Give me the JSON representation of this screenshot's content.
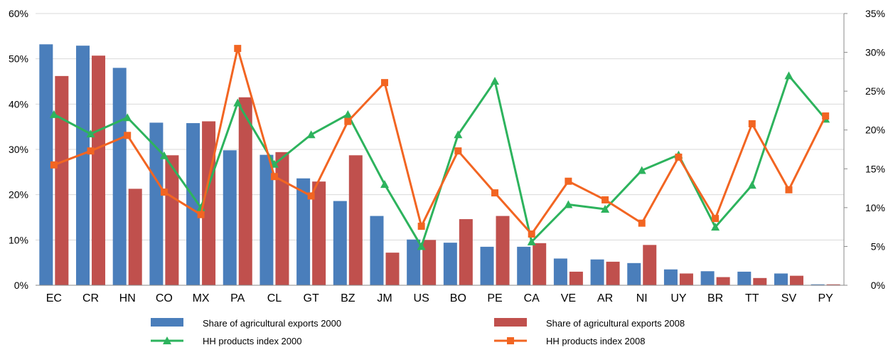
{
  "chart_data": {
    "type": "bar",
    "categories": [
      "EC",
      "CR",
      "HN",
      "CO",
      "MX",
      "PA",
      "CL",
      "GT",
      "BZ",
      "JM",
      "US",
      "BO",
      "PE",
      "CA",
      "VE",
      "AR",
      "NI",
      "UY",
      "BR",
      "TT",
      "SV",
      "PY"
    ],
    "left_axis": {
      "ticks": [
        "0%",
        "10%",
        "20%",
        "30%",
        "40%",
        "50%",
        "60%"
      ],
      "ylim": [
        0,
        60
      ]
    },
    "right_axis": {
      "ticks": [
        "0%",
        "5%",
        "10%",
        "15%",
        "20%",
        "25%",
        "30%",
        "35%"
      ],
      "ylim": [
        0,
        35
      ]
    },
    "series": [
      {
        "name": "Share of agricultural exports 2000",
        "kind": "bar",
        "axis": "left",
        "color": "#4a7ebb",
        "values": [
          53.2,
          52.9,
          48.0,
          35.9,
          35.8,
          29.8,
          28.8,
          23.6,
          18.6,
          15.3,
          10.1,
          9.4,
          8.5,
          8.5,
          5.9,
          5.7,
          4.9,
          3.5,
          3.1,
          3.0,
          2.6,
          0.2
        ]
      },
      {
        "name": "Share of agricultural exports 2008",
        "kind": "bar",
        "axis": "left",
        "color": "#c0504d",
        "values": [
          46.2,
          50.7,
          21.3,
          28.7,
          36.2,
          41.5,
          29.4,
          22.9,
          28.7,
          7.2,
          10.0,
          14.6,
          15.3,
          9.3,
          3.0,
          5.2,
          8.9,
          2.6,
          1.8,
          1.6,
          2.1,
          0.2
        ]
      },
      {
        "name": "HH products index 2000",
        "kind": "line",
        "marker": "triangle",
        "axis": "right",
        "color": "#2db35d",
        "values": [
          22.0,
          19.5,
          21.6,
          16.7,
          10.0,
          23.5,
          15.6,
          19.4,
          22.0,
          13.0,
          5.0,
          19.4,
          26.3,
          5.6,
          10.4,
          9.8,
          14.8,
          16.8,
          7.5,
          12.9,
          27.0,
          21.4
        ]
      },
      {
        "name": "HH products index 2008",
        "kind": "line",
        "marker": "square",
        "axis": "right",
        "color": "#f26522",
        "values": [
          15.5,
          17.3,
          19.3,
          12.0,
          9.1,
          30.5,
          14.0,
          11.5,
          21.1,
          26.1,
          7.6,
          17.3,
          11.9,
          6.6,
          13.4,
          11.0,
          8.0,
          16.5,
          8.6,
          20.8,
          12.3,
          21.8
        ]
      }
    ],
    "legend_position": "bottom",
    "grid": true
  }
}
